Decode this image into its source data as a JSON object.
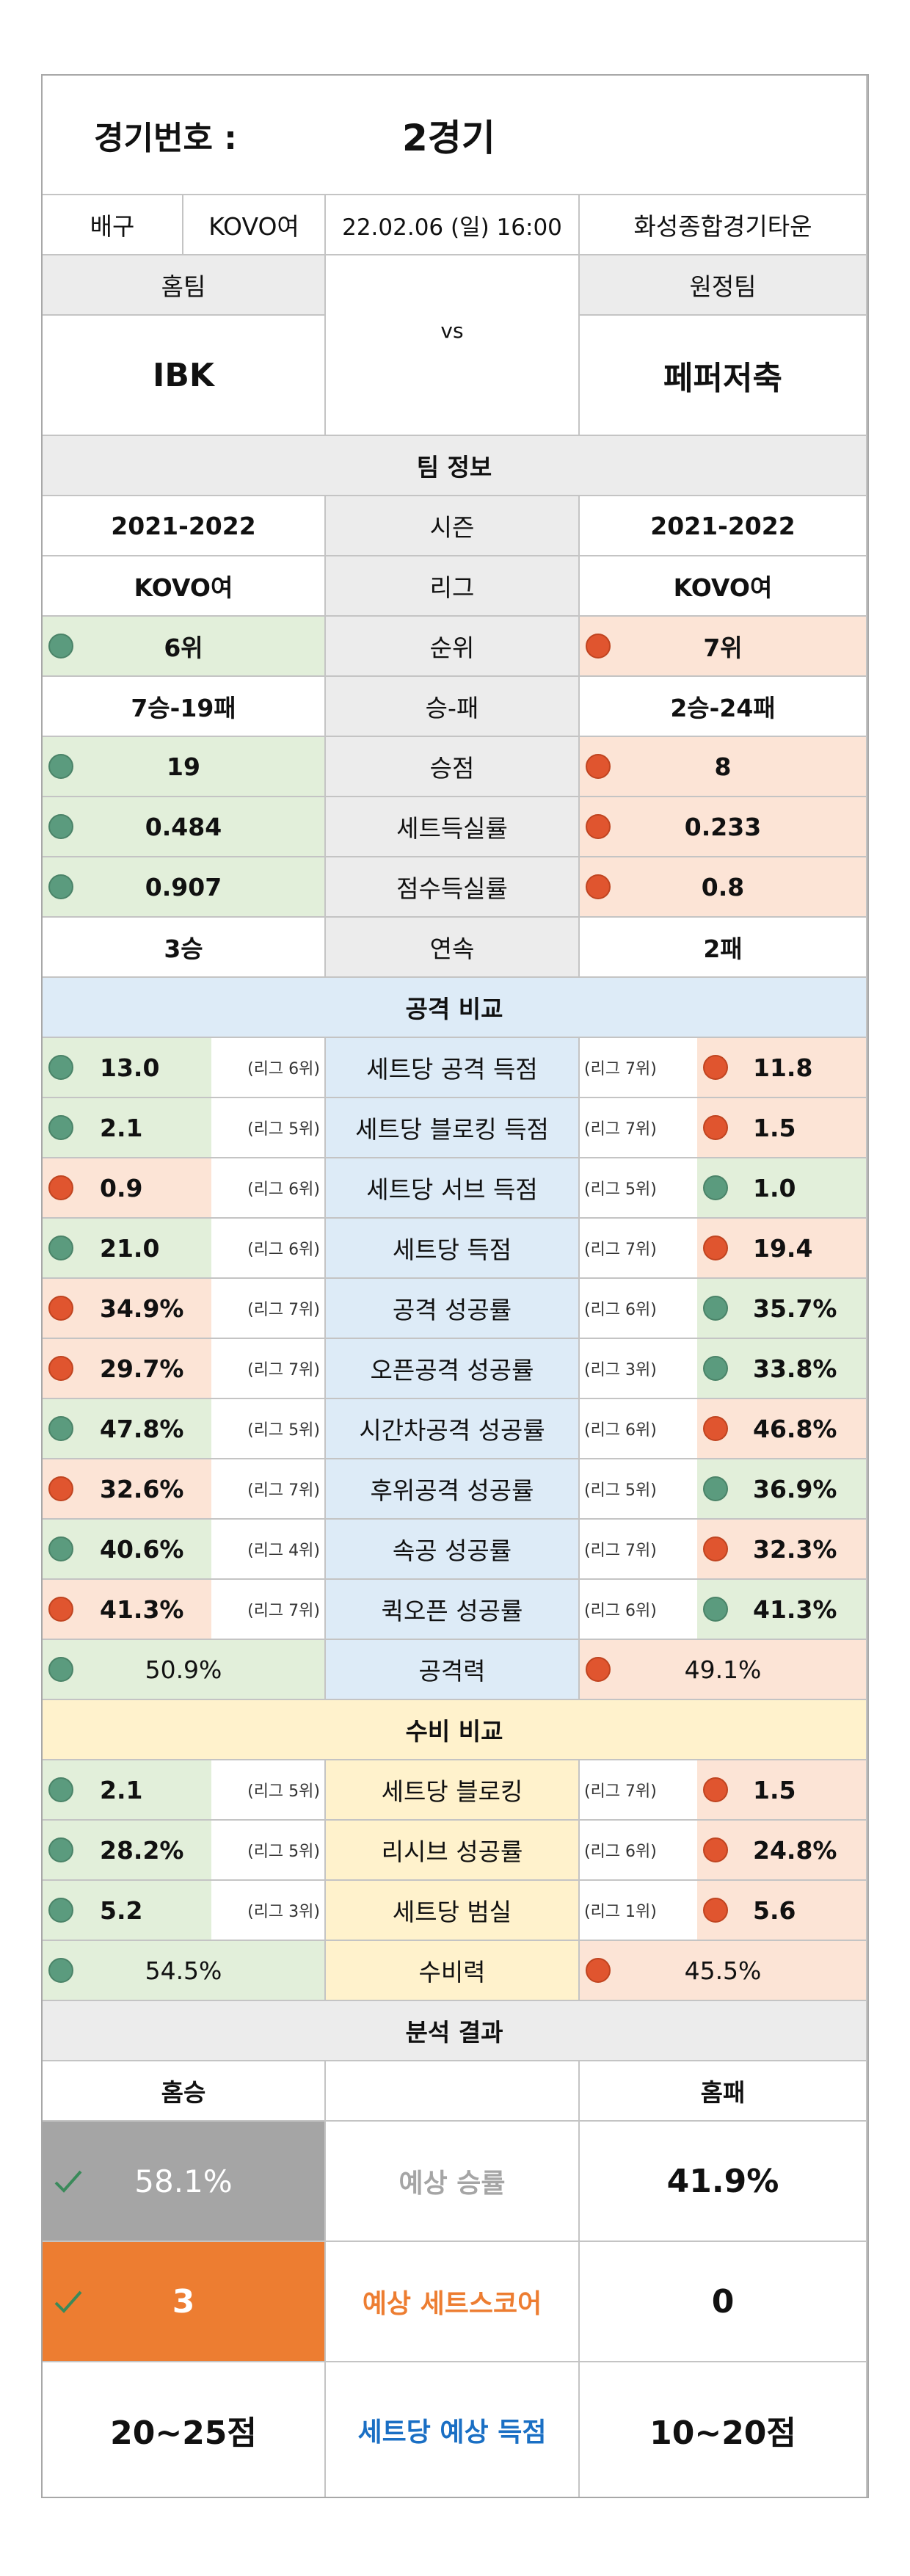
{
  "header": {
    "game_label": "경기번호 :",
    "game_value": "2경기"
  },
  "info": {
    "sport": "배구",
    "league": "KOVO여",
    "datetime": "22.02.06 (일) 16:00",
    "venue": "화성종합경기타운"
  },
  "teams": {
    "home_label": "홈팀",
    "away_label": "원정팀",
    "home": "IBK",
    "vs": "vs",
    "away": "페퍼저축"
  },
  "team_info": {
    "title": "팀 정보",
    "rows": [
      {
        "home": "2021-2022",
        "label": "시즌",
        "away": "2021-2022"
      },
      {
        "home": "KOVO여",
        "label": "리그",
        "away": "KOVO여"
      },
      {
        "home": "6위",
        "label": "순위",
        "away": "7위",
        "home_dot": "green",
        "away_dot": "red"
      },
      {
        "home": "7승-19패",
        "label": "승-패",
        "away": "2승-24패"
      },
      {
        "home": "19",
        "label": "승점",
        "away": "8",
        "home_dot": "green",
        "away_dot": "red"
      },
      {
        "home": "0.484",
        "label": "세트득실률",
        "away": "0.233",
        "home_dot": "green",
        "away_dot": "red"
      },
      {
        "home": "0.907",
        "label": "점수득실률",
        "away": "0.8",
        "home_dot": "green",
        "away_dot": "red"
      },
      {
        "home": "3승",
        "label": "연속",
        "away": "2패"
      }
    ]
  },
  "attack": {
    "title": "공격 비교",
    "rows": [
      {
        "hv": "13.0",
        "hr": "(리그 6위)",
        "label": "세트당 공격 득점",
        "ar": "(리그 7위)",
        "av": "11.8",
        "hd": "green",
        "ad": "red"
      },
      {
        "hv": "2.1",
        "hr": "(리그 5위)",
        "label": "세트당 블로킹 득점",
        "ar": "(리그 7위)",
        "av": "1.5",
        "hd": "green",
        "ad": "red"
      },
      {
        "hv": "0.9",
        "hr": "(리그 6위)",
        "label": "세트당 서브 득점",
        "ar": "(리그 5위)",
        "av": "1.0",
        "hd": "red",
        "ad": "green"
      },
      {
        "hv": "21.0",
        "hr": "(리그 6위)",
        "label": "세트당 득점",
        "ar": "(리그 7위)",
        "av": "19.4",
        "hd": "green",
        "ad": "red"
      },
      {
        "hv": "34.9%",
        "hr": "(리그 7위)",
        "label": "공격 성공률",
        "ar": "(리그 6위)",
        "av": "35.7%",
        "hd": "red",
        "ad": "green"
      },
      {
        "hv": "29.7%",
        "hr": "(리그 7위)",
        "label": "오픈공격 성공률",
        "ar": "(리그 3위)",
        "av": "33.8%",
        "hd": "red",
        "ad": "green"
      },
      {
        "hv": "47.8%",
        "hr": "(리그 5위)",
        "label": "시간차공격 성공률",
        "ar": "(리그 6위)",
        "av": "46.8%",
        "hd": "green",
        "ad": "red"
      },
      {
        "hv": "32.6%",
        "hr": "(리그 7위)",
        "label": "후위공격 성공률",
        "ar": "(리그 5위)",
        "av": "36.9%",
        "hd": "red",
        "ad": "green"
      },
      {
        "hv": "40.6%",
        "hr": "(리그 4위)",
        "label": "속공 성공률",
        "ar": "(리그 7위)",
        "av": "32.3%",
        "hd": "green",
        "ad": "red"
      },
      {
        "hv": "41.3%",
        "hr": "(리그 7위)",
        "label": "퀵오픈 성공률",
        "ar": "(리그 6위)",
        "av": "41.3%",
        "hd": "red",
        "ad": "green"
      }
    ],
    "power": {
      "home": "50.9%",
      "label": "공격력",
      "away": "49.1%"
    }
  },
  "defense": {
    "title": "수비 비교",
    "rows": [
      {
        "hv": "2.1",
        "hr": "(리그 5위)",
        "label": "세트당 블로킹",
        "ar": "(리그 7위)",
        "av": "1.5",
        "hd": "green",
        "ad": "red"
      },
      {
        "hv": "28.2%",
        "hr": "(리그 5위)",
        "label": "리시브 성공률",
        "ar": "(리그 6위)",
        "av": "24.8%",
        "hd": "green",
        "ad": "red"
      },
      {
        "hv": "5.2",
        "hr": "(리그 3위)",
        "label": "세트당 범실",
        "ar": "(리그 1위)",
        "av": "5.6",
        "hd": "green",
        "ad": "red"
      }
    ],
    "power": {
      "home": "54.5%",
      "label": "수비력",
      "away": "45.5%"
    }
  },
  "analysis": {
    "title": "분석 결과",
    "home_header": "홈승",
    "away_header": "홈패",
    "win_rate": {
      "home": "58.1%",
      "label": "예상 승률",
      "away": "41.9%"
    },
    "set_score": {
      "home": "3",
      "label": "예상 세트스코어",
      "away": "0"
    },
    "points": {
      "home": "20~25점",
      "label": "세트당 예상 득점",
      "away": "10~20점"
    }
  },
  "colors": {
    "green_dot": "#5b9b7e",
    "red_dot": "#e0552f",
    "orange": "#ed7d31",
    "blue_label": "#1a6fc4"
  }
}
